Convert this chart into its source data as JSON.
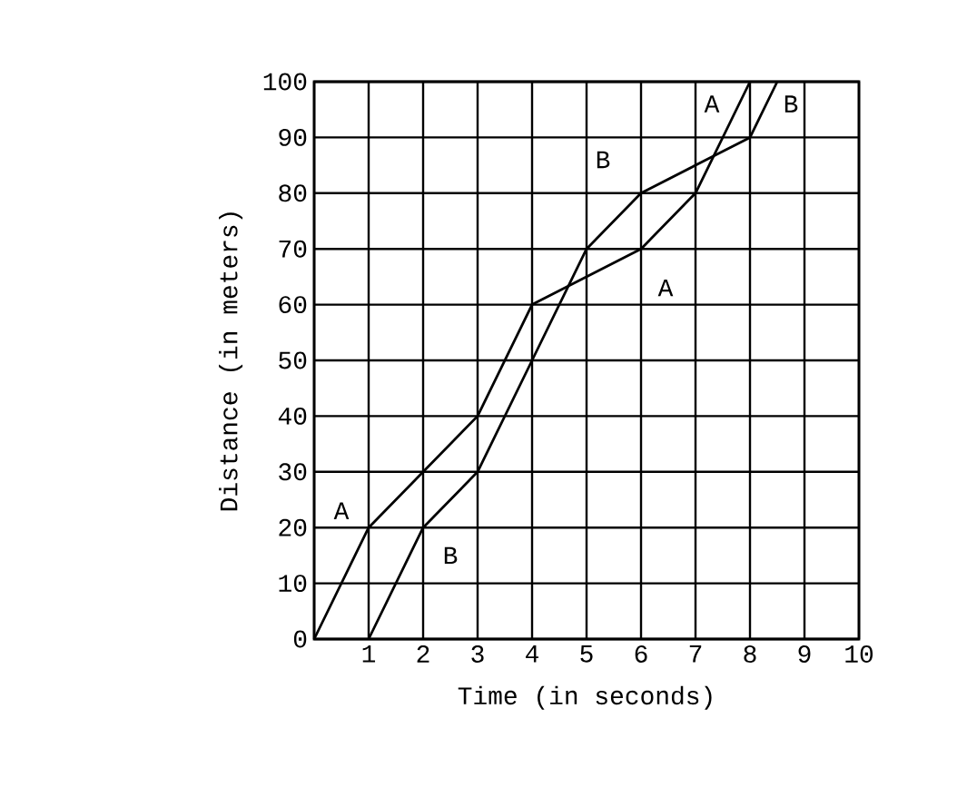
{
  "chart_data": {
    "type": "line",
    "xlabel": "Time (in seconds)",
    "ylabel": "Distance (in meters)",
    "xlim": [
      0,
      10
    ],
    "ylim": [
      0,
      100
    ],
    "xticks": [
      {
        "value": 0,
        "label": null
      },
      1,
      2,
      3,
      4,
      5,
      6,
      7,
      8,
      9,
      10
    ],
    "yticks": [
      0,
      10,
      20,
      30,
      40,
      50,
      60,
      70,
      80,
      90,
      100
    ],
    "grid": true,
    "marker": "none",
    "line_style": "solid",
    "series": [
      {
        "color": "#000000",
        "x": [
          0,
          1,
          2,
          3,
          4,
          6,
          7,
          8
        ],
        "values": [
          0,
          20,
          30,
          40,
          60,
          70,
          80,
          100
        ]
      },
      {
        "color": "#000000",
        "x": [
          1,
          2,
          3,
          4,
          5,
          6,
          7,
          8,
          8.5
        ],
        "values": [
          0,
          20,
          30,
          50,
          70,
          80,
          85,
          90,
          100
        ]
      }
    ],
    "annotations": [
      {
        "text": "A",
        "x": 0.5,
        "y": 23
      },
      {
        "text": "B",
        "x": 2.5,
        "y": 15
      },
      {
        "text": "B",
        "x": 5.3,
        "y": 86
      },
      {
        "text": "A",
        "x": 6.45,
        "y": 63
      },
      {
        "text": "A",
        "x": 7.3,
        "y": 96
      },
      {
        "text": "B",
        "x": 8.75,
        "y": 96
      }
    ]
  }
}
